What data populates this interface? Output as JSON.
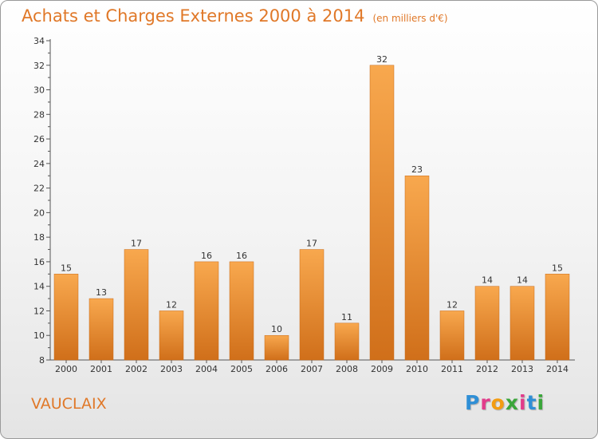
{
  "header": {
    "title": "Achats et Charges Externes 2000 à 2014",
    "unit": "(en milliers d'€)"
  },
  "footer": {
    "commune": "VAUCLAIX",
    "logo_letters": [
      "P",
      "r",
      "o",
      "x",
      "i",
      "t",
      "i"
    ],
    "logo_colors": [
      "#2f8fd6",
      "#e23b8a",
      "#f39c12",
      "#3aa63a",
      "#e23b8a",
      "#2f8fd6",
      "#3aa63a"
    ]
  },
  "colors": {
    "bar_top": "#f8a84e",
    "bar_bottom": "#d06f1a",
    "accent": "#e07828"
  },
  "chart_data": {
    "type": "bar",
    "title": "Achats et Charges Externes 2000 à 2014",
    "xlabel": "",
    "ylabel": "",
    "categories": [
      "2000",
      "2001",
      "2002",
      "2003",
      "2004",
      "2005",
      "2006",
      "2007",
      "2008",
      "2009",
      "2010",
      "2011",
      "2012",
      "2013",
      "2014"
    ],
    "values": [
      15,
      13,
      17,
      12,
      16,
      16,
      10,
      17,
      11,
      32,
      23,
      12,
      14,
      14,
      15
    ],
    "ylim": [
      8,
      34
    ],
    "yticks": [
      8,
      10,
      12,
      14,
      16,
      18,
      20,
      22,
      24,
      26,
      28,
      30,
      32,
      34
    ],
    "grid": false,
    "show_value_labels": true
  }
}
